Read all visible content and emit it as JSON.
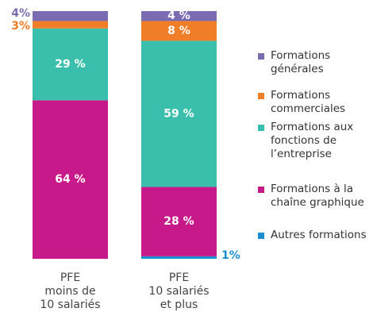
{
  "chart_data": {
    "type": "stacked_bar_100",
    "categories": [
      "PFE\nmoins de\n10 salariés",
      "PFE\n10 salariés\net plus"
    ],
    "series": [
      {
        "name": "Formations générales",
        "color": "#7b6bb0",
        "values": [
          4,
          4
        ],
        "value_labels": [
          "4%",
          "4 %"
        ]
      },
      {
        "name": "Formations commerciales",
        "color": "#f07d28",
        "values": [
          3,
          8
        ],
        "value_labels": [
          "3%",
          "8 %"
        ]
      },
      {
        "name": "Formations aux fonctions de l’entreprise",
        "color": "#3bbfad",
        "values": [
          29,
          59
        ],
        "value_labels": [
          "29 %",
          "59 %"
        ]
      },
      {
        "name": "Formations à la chaîne graphique",
        "color": "#c8198a",
        "values": [
          64,
          28
        ],
        "value_labels": [
          "64 %",
          "28 %"
        ]
      },
      {
        "name": "Autres formations",
        "color": "#1a8fcf",
        "values": [
          0,
          1
        ],
        "value_labels": [
          null,
          "1%"
        ]
      }
    ]
  }
}
